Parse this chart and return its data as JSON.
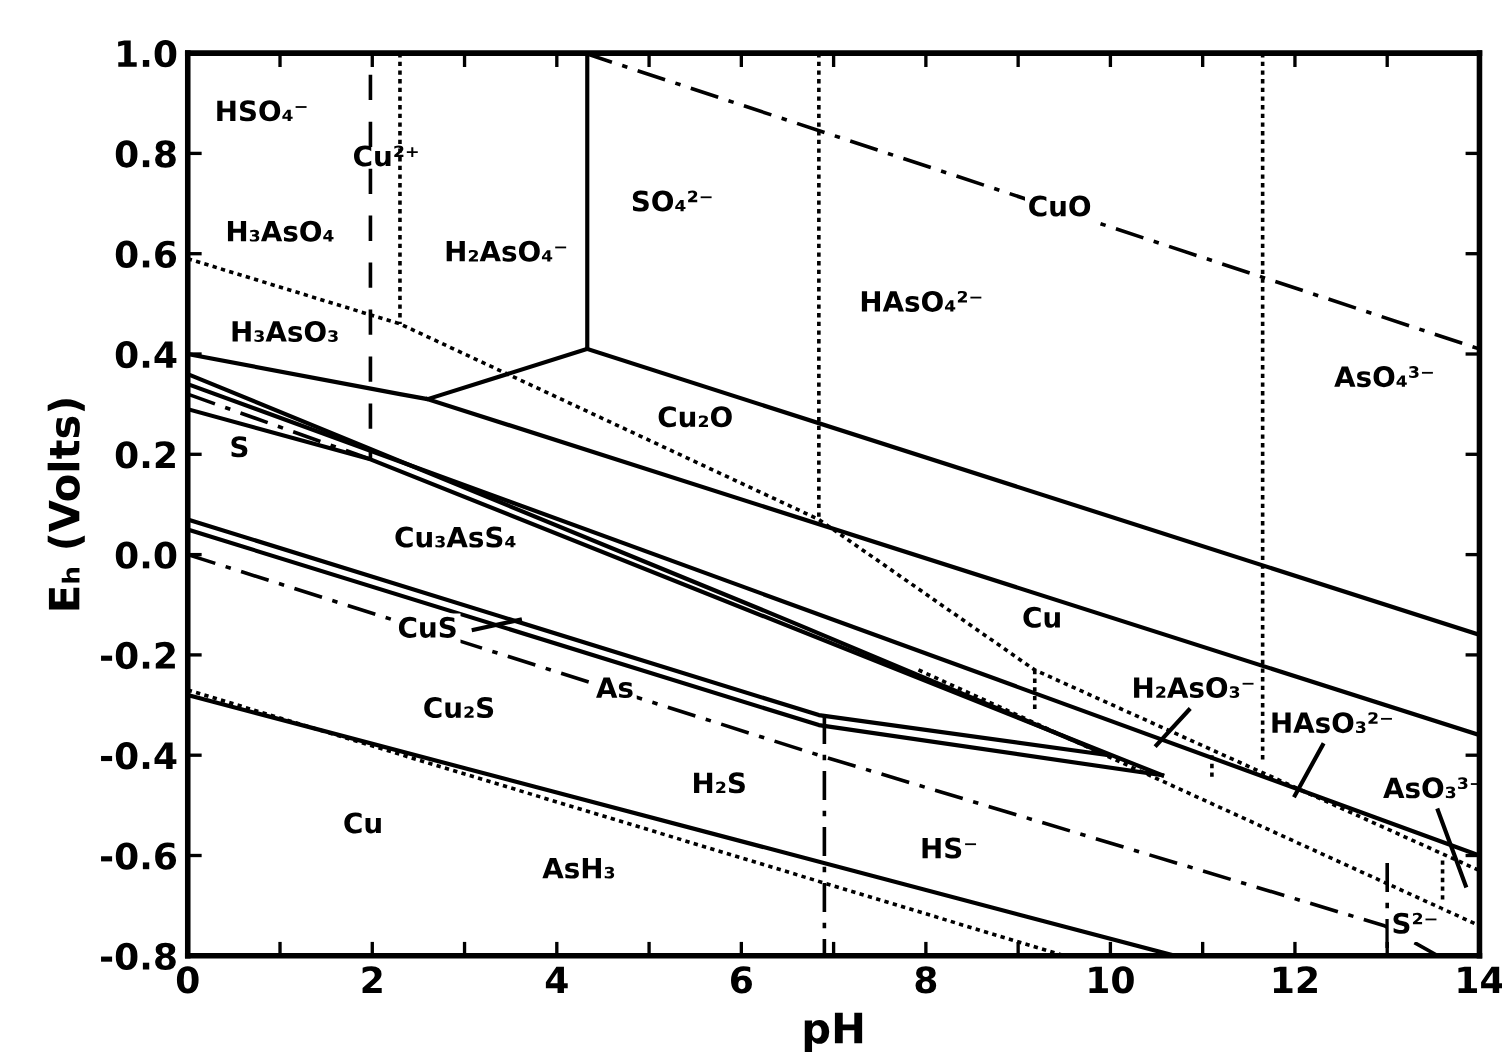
{
  "chart_data": {
    "type": "line",
    "xlabel": "pH",
    "ylabel": "Eₕ (Volts)",
    "xlim": [
      0,
      14
    ],
    "ylim": [
      -0.8,
      1.0
    ],
    "xticks": [
      0,
      {
        "value": 1,
        "label": null
      },
      2,
      {
        "value": 3,
        "label": null
      },
      4,
      {
        "value": 5,
        "label": null
      },
      6,
      {
        "value": 7,
        "label": null
      },
      8,
      {
        "value": 9,
        "label": null
      },
      10,
      {
        "value": 11,
        "label": null
      },
      12,
      {
        "value": 13,
        "label": null
      },
      14
    ],
    "yticks": [
      {
        "value": -0.8,
        "label": "-0.8"
      },
      {
        "value": -0.6,
        "label": "-0.6"
      },
      {
        "value": -0.4,
        "label": "-0.4"
      },
      {
        "value": -0.2,
        "label": "-0.2"
      },
      {
        "value": 0,
        "label": "0.0"
      },
      0.2,
      0.4,
      0.6,
      0.8,
      {
        "value": 1,
        "label": "1.0"
      }
    ],
    "grid": false,
    "legend": false,
    "marker": "none",
    "series": [
      {
        "color": "#000000",
        "line_style": "solid",
        "x": [
          0,
          2.3,
          2.6,
          4.33
        ],
        "values": [
          0.4,
          0.32,
          0.31,
          0.41
        ]
      },
      {
        "color": "#000000",
        "line_style": "solid",
        "x": [
          4.33,
          4.33
        ],
        "values": [
          0.41,
          1.0
        ]
      },
      {
        "color": "#000000",
        "line_style": "solid",
        "x": [
          4.33,
          14
        ],
        "values": [
          0.41,
          -0.16
        ]
      },
      {
        "color": "#000000",
        "line_style": "solid",
        "x": [
          2.6,
          14
        ],
        "values": [
          0.31,
          -0.36
        ]
      },
      {
        "color": "#000000",
        "line_style": "solid",
        "x": [
          0,
          6.62,
          9.98
        ],
        "values": [
          0.36,
          -0.14,
          -0.4
        ]
      },
      {
        "color": "#000000",
        "line_style": "solid",
        "x": [
          0,
          14
        ],
        "values": [
          0.34,
          -0.6
        ]
      },
      {
        "color": "#000000",
        "line_style": "solid",
        "x": [
          0,
          1.98,
          10.56
        ],
        "values": [
          0.29,
          0.19,
          -0.44
        ]
      },
      {
        "color": "#000000",
        "line_style": "solid",
        "x": [
          0,
          6.84,
          9.98
        ],
        "values": [
          0.07,
          -0.32,
          -0.4
        ]
      },
      {
        "color": "#000000",
        "line_style": "solid",
        "x": [
          0,
          6.84,
          10.56
        ],
        "values": [
          0.05,
          -0.34,
          -0.44
        ]
      },
      {
        "color": "#000000",
        "line_style": "solid",
        "x": [
          0,
          10.7
        ],
        "values": [
          -0.28,
          -0.8
        ]
      },
      {
        "color": "#000000",
        "line_style": "dashdot",
        "x": [
          4.3,
          14
        ],
        "values": [
          1.0,
          0.41
        ]
      },
      {
        "color": "#000000",
        "line_style": "dashdot",
        "x": [
          0,
          6.84,
          12.97,
          13.55
        ],
        "values": [
          0.0,
          -0.4,
          -0.74,
          -0.8
        ]
      },
      {
        "color": "#000000",
        "line_style": "dashdot",
        "x": [
          0,
          1.98
        ],
        "values": [
          0.32,
          0.19
        ]
      },
      {
        "color": "#000000",
        "line_style": "dashdot",
        "x": [
          6.9,
          6.9
        ],
        "values": [
          -0.32,
          -0.8
        ]
      },
      {
        "color": "#000000",
        "line_style": "dashdot",
        "x": [
          13.0,
          13.0
        ],
        "values": [
          -0.615,
          -0.8
        ]
      },
      {
        "color": "#000000",
        "line_style": "dashed",
        "x": [
          1.98,
          1.98
        ],
        "values": [
          1.0,
          0.19
        ]
      },
      {
        "color": "#000000",
        "line_style": "dotted",
        "x": [
          2.3,
          2.3
        ],
        "values": [
          1.0,
          0.46
        ]
      },
      {
        "color": "#000000",
        "line_style": "dotted",
        "x": [
          6.84,
          6.84
        ],
        "values": [
          1.0,
          0.07
        ]
      },
      {
        "color": "#000000",
        "line_style": "dotted",
        "x": [
          11.65,
          11.65
        ],
        "values": [
          1.0,
          -0.41
        ]
      },
      {
        "color": "#000000",
        "line_style": "dotted",
        "x": [
          0,
          2.3,
          6.84,
          9.18,
          14
        ],
        "values": [
          0.59,
          0.46,
          0.07,
          -0.23,
          -0.63
        ]
      },
      {
        "color": "#000000",
        "line_style": "dotted",
        "x": [
          7.92,
          14
        ],
        "values": [
          -0.23,
          -0.74
        ]
      },
      {
        "color": "#000000",
        "line_style": "dotted",
        "x": [
          0,
          9.5
        ],
        "values": [
          -0.27,
          -0.8
        ]
      },
      {
        "color": "#000000",
        "line_style": "dotted",
        "x": [
          9.18,
          9.18
        ],
        "values": [
          -0.23,
          -0.31
        ]
      },
      {
        "color": "#000000",
        "line_style": "dotted",
        "x": [
          11.1,
          11.1
        ],
        "values": [
          -0.4,
          -0.45
        ]
      },
      {
        "color": "#000000",
        "line_style": "dotted",
        "x": [
          13.6,
          13.6
        ],
        "values": [
          -0.61,
          -0.69
        ]
      },
      {
        "color": "#000000",
        "line_style": "solid",
        "x": [
          3.1,
          3.6
        ],
        "values": [
          -0.15,
          -0.13
        ]
      },
      {
        "color": "#000000",
        "line_style": "solid",
        "x": [
          10.85,
          10.5
        ],
        "values": [
          -0.31,
          -0.38
        ]
      },
      {
        "color": "#000000",
        "line_style": "solid",
        "x": [
          12.3,
          12.0
        ],
        "values": [
          -0.38,
          -0.48
        ]
      },
      {
        "color": "#000000",
        "line_style": "solid",
        "x": [
          13.55,
          13.85
        ],
        "values": [
          -0.51,
          -0.66
        ]
      }
    ],
    "annotations": [
      "HSO₄⁻",
      "Cu²⁺",
      "H₃AsO₄",
      "H₂AsO₄⁻",
      "SO₄²⁻",
      "H₃AsO₃",
      "S",
      "Cu₂O",
      "CuO",
      "HAsO₄²⁻",
      "AsO₄³⁻",
      "Cu₃AsS₄",
      "CuS",
      "As",
      "Cu₂S",
      "H₂S",
      "Cu",
      "AsH₃",
      "Cu",
      "H₂AsO₃⁻",
      "HAsO₃²⁻",
      "AsO₃³⁻",
      "HS⁻",
      "S²⁻"
    ]
  }
}
